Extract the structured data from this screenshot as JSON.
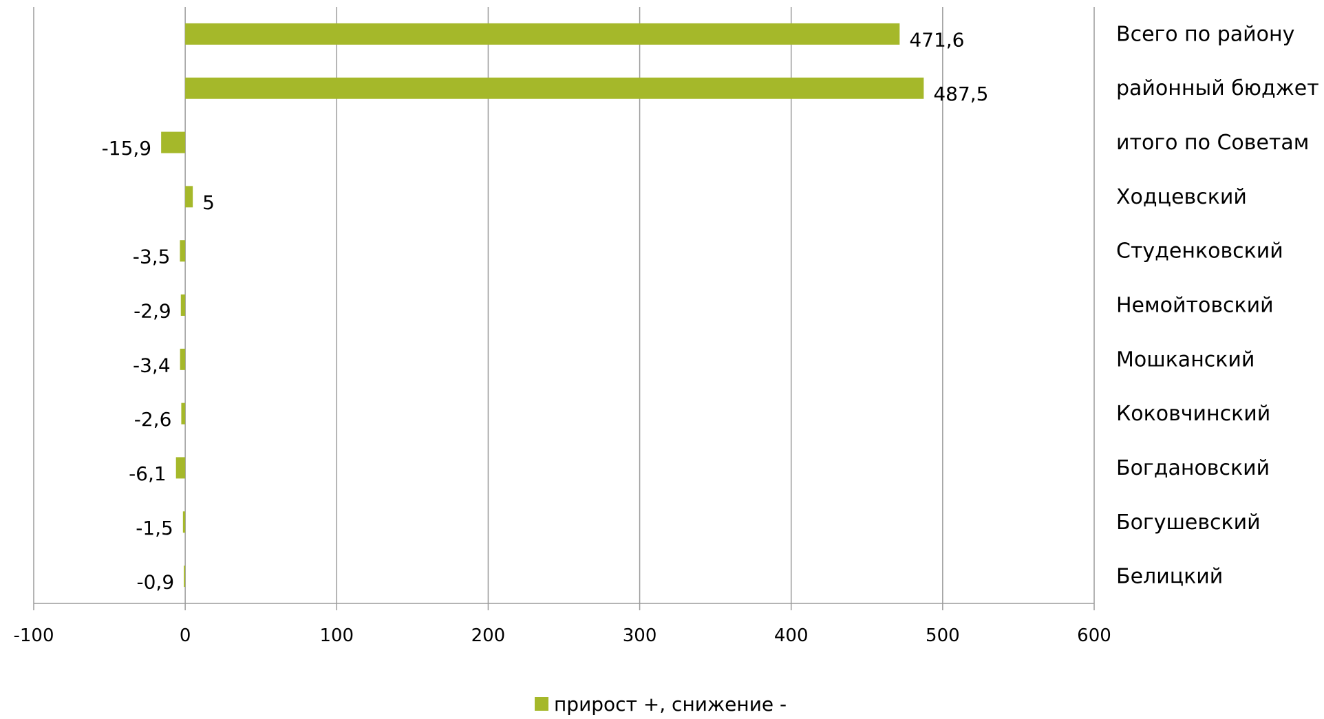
{
  "chart_data": {
    "type": "bar",
    "orientation": "horizontal",
    "categories": [
      "Всего по району",
      "районный бюджет",
      "итого по Советам",
      "Ходцевский",
      "Студенковский",
      "Немойтовский",
      "Мошканский",
      "Коковчинский",
      "Богдановский",
      "Богушевский",
      "Белицкий"
    ],
    "series": [
      {
        "name": "прирост +, снижение -",
        "color": "#a5b82a",
        "values": [
          471.6,
          487.5,
          -15.9,
          5,
          -3.5,
          -2.9,
          -3.4,
          -2.6,
          -6.1,
          -1.5,
          -0.9
        ],
        "labels": [
          "471,6",
          "487,5",
          "-15,9",
          "5",
          "-3,5",
          "-2,9",
          "-3,4",
          "-2,6",
          "-6,1",
          "-1,5",
          "-0,9"
        ]
      }
    ],
    "xlim": [
      -100,
      600
    ],
    "xticks": [
      -100,
      0,
      100,
      200,
      300,
      400,
      500,
      600
    ],
    "xtick_labels": [
      "-100",
      "0",
      "100",
      "200",
      "300",
      "400",
      "500",
      "600"
    ],
    "grid": true,
    "legend_position": "bottom",
    "category_labels_position": "right"
  }
}
